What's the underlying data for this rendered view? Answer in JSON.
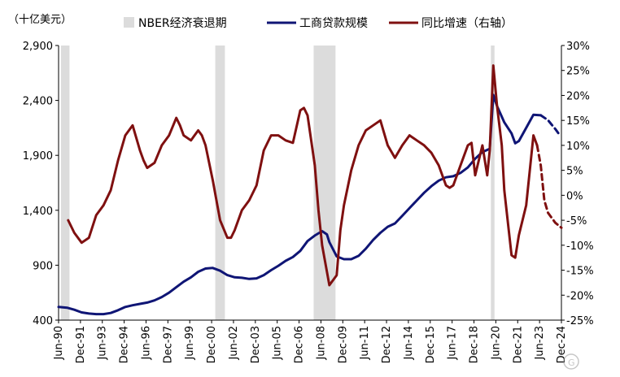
{
  "chart_data": {
    "type": "line",
    "unit_left": "（十亿美元）",
    "legend": [
      {
        "key": "recession",
        "label": "NBER经济衰退期",
        "kind": "band",
        "color": "#dcdcdc"
      },
      {
        "key": "loans",
        "label": "工商贷款规模",
        "kind": "line",
        "color": "#0f1575"
      },
      {
        "key": "yoy",
        "label": "同比增速（右轴）",
        "kind": "line",
        "color": "#7f1010"
      }
    ],
    "x_tick_labels": [
      "Jun-90",
      "Dec-91",
      "Jun-93",
      "Dec-94",
      "Jun-96",
      "Dec-97",
      "Jun-99",
      "Dec-00",
      "Jun-02",
      "Dec-03",
      "Jun-05",
      "Dec-06",
      "Jun-08",
      "Dec-09",
      "Jun-11",
      "Dec-12",
      "Jun-14",
      "Dec-15",
      "Jun-17",
      "Dec-18",
      "Jun-20",
      "Dec-21",
      "Jun-23",
      "Dec-24"
    ],
    "x_range": [
      1990.42,
      2024.92
    ],
    "y_left": {
      "min": 400,
      "max": 2900,
      "ticks": [
        400,
        900,
        1400,
        1900,
        2400,
        2900
      ],
      "tick_labels": [
        "400",
        "900",
        "1,400",
        "1,900",
        "2,400",
        "2,900"
      ]
    },
    "y_right": {
      "min": -25,
      "max": 30,
      "ticks": [
        -25,
        -20,
        -15,
        -10,
        -5,
        0,
        5,
        10,
        15,
        20,
        25,
        30
      ],
      "tick_labels": [
        "-25%",
        "-20%",
        "-15%",
        "-10%",
        "-5%",
        "0%",
        "5%",
        "10%",
        "15%",
        "20%",
        "25%",
        "30%"
      ]
    },
    "recessions": [
      [
        1990.58,
        1991.17
      ],
      [
        2001.17,
        2001.83
      ],
      [
        2007.92,
        2009.42
      ],
      [
        2020.08,
        2020.33
      ]
    ],
    "series": [
      {
        "name": "工商贷款规模",
        "axis": "left",
        "color": "#0f1575",
        "style": "solid",
        "x": [
          1990.42,
          1991.0,
          1991.5,
          1992.0,
          1992.5,
          1993.0,
          1993.5,
          1994.0,
          1994.5,
          1995.0,
          1995.5,
          1996.0,
          1996.5,
          1997.0,
          1997.5,
          1998.0,
          1998.5,
          1999.0,
          1999.5,
          2000.0,
          2000.5,
          2001.0,
          2001.5,
          2002.0,
          2002.5,
          2003.0,
          2003.5,
          2004.0,
          2004.5,
          2005.0,
          2005.5,
          2006.0,
          2006.5,
          2007.0,
          2007.5,
          2008.0,
          2008.5,
          2008.83,
          2009.0,
          2009.5,
          2010.0,
          2010.5,
          2011.0,
          2011.5,
          2012.0,
          2012.5,
          2013.0,
          2013.5,
          2014.0,
          2014.5,
          2015.0,
          2015.5,
          2016.0,
          2016.5,
          2017.0,
          2017.5,
          2018.0,
          2018.5,
          2019.0,
          2019.5,
          2020.0,
          2020.25,
          2020.5,
          2021.0,
          2021.5,
          2021.75,
          2022.0,
          2022.5,
          2023.0,
          2023.5
        ],
        "values": [
          520,
          513,
          495,
          470,
          460,
          455,
          455,
          465,
          490,
          520,
          535,
          548,
          560,
          580,
          610,
          650,
          700,
          750,
          790,
          840,
          870,
          875,
          850,
          810,
          790,
          785,
          775,
          780,
          810,
          855,
          895,
          940,
          975,
          1030,
          1120,
          1170,
          1210,
          1180,
          1110,
          980,
          955,
          955,
          985,
          1050,
          1130,
          1195,
          1250,
          1280,
          1350,
          1420,
          1490,
          1560,
          1620,
          1670,
          1700,
          1710,
          1740,
          1790,
          1870,
          1930,
          1960,
          2450,
          2350,
          2200,
          2100,
          2010,
          2030,
          2150,
          2270,
          2265
        ]
      },
      {
        "name": "工商贷款规模",
        "axis": "left",
        "color": "#0f1575",
        "style": "dashed",
        "x": [
          2023.5,
          2024.0,
          2024.5,
          2024.83
        ],
        "values": [
          2265,
          2220,
          2140,
          2080
        ]
      },
      {
        "name": "同比增速（右轴）",
        "axis": "right",
        "color": "#7f1010",
        "style": "solid",
        "x": [
          1991.08,
          1991.5,
          1992.0,
          1992.5,
          1993.0,
          1993.5,
          1994.0,
          1994.5,
          1995.0,
          1995.5,
          1996.0,
          1996.25,
          1996.5,
          1997.0,
          1997.5,
          1998.0,
          1998.5,
          1998.75,
          1999.0,
          1999.5,
          1999.75,
          2000.0,
          2000.25,
          2000.5,
          2001.0,
          2001.5,
          2002.0,
          2002.25,
          2002.5,
          2003.0,
          2003.5,
          2004.0,
          2004.5,
          2005.0,
          2005.5,
          2006.0,
          2006.5,
          2007.0,
          2007.25,
          2007.5,
          2008.0,
          2008.25,
          2008.5,
          2009.0,
          2009.5,
          2009.75,
          2010.0,
          2010.5,
          2011.0,
          2011.5,
          2012.0,
          2012.5,
          2013.0,
          2013.5,
          2014.0,
          2014.5,
          2015.0,
          2015.5,
          2016.0,
          2016.5,
          2017.0,
          2017.25,
          2017.5,
          2018.0,
          2018.5,
          2018.75,
          2019.0,
          2019.5,
          2019.83,
          2020.0,
          2020.25,
          2020.5,
          2020.83,
          2021.0,
          2021.5,
          2021.75,
          2022.0,
          2022.5,
          2023.0,
          2023.25
        ],
        "values": [
          -5,
          -7.5,
          -9.5,
          -8.5,
          -4,
          -2,
          1,
          7,
          12,
          14,
          9,
          7,
          5.5,
          6.5,
          10,
          12,
          15.5,
          14,
          12,
          11,
          12,
          13,
          12,
          10,
          3,
          -5,
          -8.5,
          -8.5,
          -7,
          -3,
          -1,
          2,
          9,
          12,
          12,
          11,
          10.5,
          17,
          17.5,
          16,
          6,
          -3,
          -10,
          -18,
          -16,
          -7,
          -2,
          5,
          10,
          13,
          14,
          15,
          10,
          7.5,
          10,
          12,
          11,
          10,
          8.5,
          6,
          2,
          1.5,
          2,
          6,
          10,
          10.5,
          4,
          10,
          4,
          9,
          26,
          18,
          10,
          1,
          -12,
          -12.5,
          -8,
          -2,
          12,
          10
        ]
      },
      {
        "name": "同比增速（右轴）",
        "axis": "right",
        "color": "#7f1010",
        "style": "dashed",
        "x": [
          2023.25,
          2023.5,
          2023.75,
          2024.0,
          2024.5,
          2024.92
        ],
        "values": [
          10,
          6,
          -1,
          -3.5,
          -5.5,
          -6.5
        ]
      }
    ]
  }
}
